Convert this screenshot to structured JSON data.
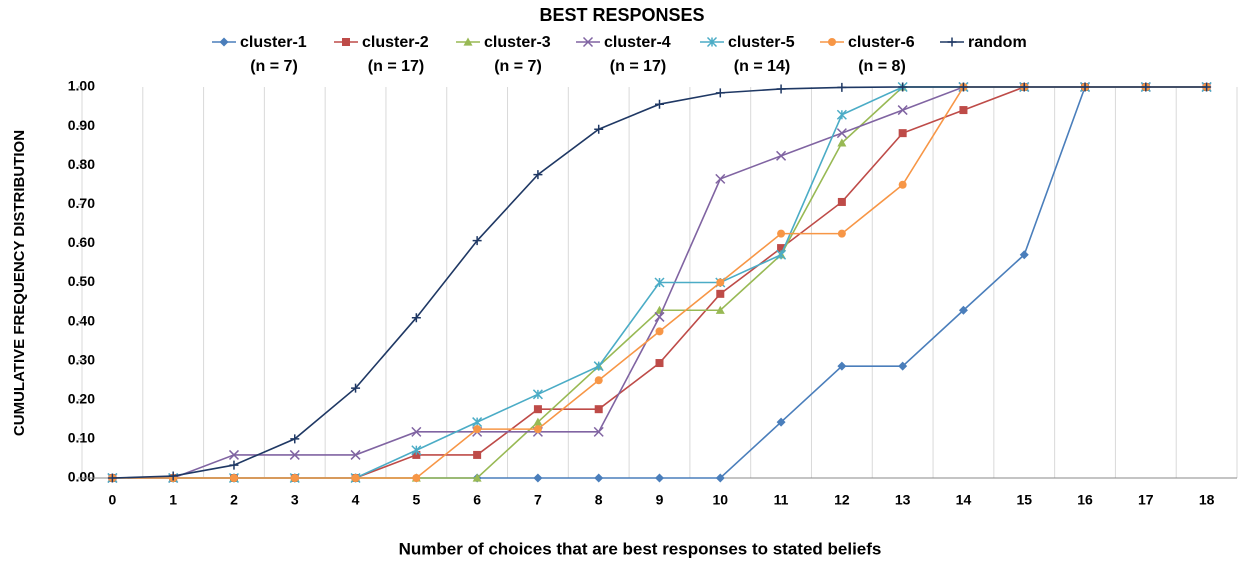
{
  "chart_data": {
    "type": "line",
    "title": "BEST RESPONSES",
    "x_label": "Number of choices that are best responses to stated beliefs",
    "y_label": "CUMULATIVE FREQUENCY DISTRIBUTION",
    "categories": [
      "0",
      "1",
      "2",
      "3",
      "4",
      "5",
      "6",
      "7",
      "8",
      "9",
      "10",
      "11",
      "12",
      "13",
      "14",
      "15",
      "16",
      "17",
      "18"
    ],
    "ylim": [
      0,
      1
    ],
    "yticks": [
      {
        "value": 0,
        "label": "0.00"
      },
      {
        "value": 0.1,
        "label": "0.10"
      },
      {
        "value": 0.2,
        "label": "0.20"
      },
      {
        "value": 0.3,
        "label": "0.30"
      },
      {
        "value": 0.4,
        "label": "0.40"
      },
      {
        "value": 0.5,
        "label": "0.50"
      },
      {
        "value": 0.6,
        "label": "0.60"
      },
      {
        "value": 0.7,
        "label": "0.70"
      },
      {
        "value": 0.8,
        "label": "0.80"
      },
      {
        "value": 0.9,
        "label": "0.90"
      },
      {
        "value": 1,
        "label": "1.00"
      }
    ],
    "series": [
      {
        "name": "cluster-1",
        "legend_note": "(n = 7)",
        "color": "#4a7ebb",
        "marker": "diamond",
        "values": [
          0,
          0,
          0,
          0,
          0,
          0,
          0,
          0,
          0,
          0,
          0,
          0.143,
          0.286,
          0.286,
          0.429,
          0.571,
          1,
          1,
          1
        ]
      },
      {
        "name": "cluster-2",
        "legend_note": "(n = 17)",
        "color": "#be4b48",
        "marker": "square",
        "values": [
          0,
          0,
          0,
          0,
          0,
          0.059,
          0.059,
          0.176,
          0.176,
          0.294,
          0.471,
          0.588,
          0.706,
          0.882,
          0.941,
          1,
          1,
          1,
          1
        ]
      },
      {
        "name": "cluster-3",
        "legend_note": "(n = 7)",
        "color": "#98b954",
        "marker": "triangle",
        "values": [
          0,
          0,
          0,
          0,
          0,
          0,
          0,
          0.143,
          0.286,
          0.429,
          0.429,
          0.571,
          0.857,
          1,
          1,
          1,
          1,
          1,
          1
        ]
      },
      {
        "name": "cluster-4",
        "legend_note": "(n = 17)",
        "color": "#8064a2",
        "marker": "x",
        "values": [
          0,
          0,
          0.059,
          0.059,
          0.059,
          0.118,
          0.118,
          0.118,
          0.118,
          0.412,
          0.765,
          0.824,
          0.882,
          0.941,
          1,
          1,
          1,
          1,
          1
        ]
      },
      {
        "name": "cluster-5",
        "legend_note": "(n = 14)",
        "color": "#4bacc6",
        "marker": "star",
        "values": [
          0,
          0,
          0,
          0,
          0,
          0.071,
          0.143,
          0.214,
          0.286,
          0.5,
          0.5,
          0.571,
          0.929,
          1,
          1,
          1,
          1,
          1,
          1
        ]
      },
      {
        "name": "cluster-6",
        "legend_note": "(n = 8)",
        "color": "#f79646",
        "marker": "circle",
        "values": [
          0,
          0,
          0,
          0,
          0,
          0,
          0.125,
          0.125,
          0.25,
          0.375,
          0.5,
          0.625,
          0.625,
          0.75,
          1,
          1,
          1,
          1,
          1
        ]
      },
      {
        "name": "random",
        "color": "#1f3864",
        "marker": "plus",
        "values": [
          0,
          0.005,
          0.033,
          0.1,
          0.23,
          0.41,
          0.607,
          0.776,
          0.892,
          0.956,
          0.985,
          0.995,
          0.999,
          1,
          1,
          1,
          1,
          1,
          1
        ]
      }
    ]
  }
}
